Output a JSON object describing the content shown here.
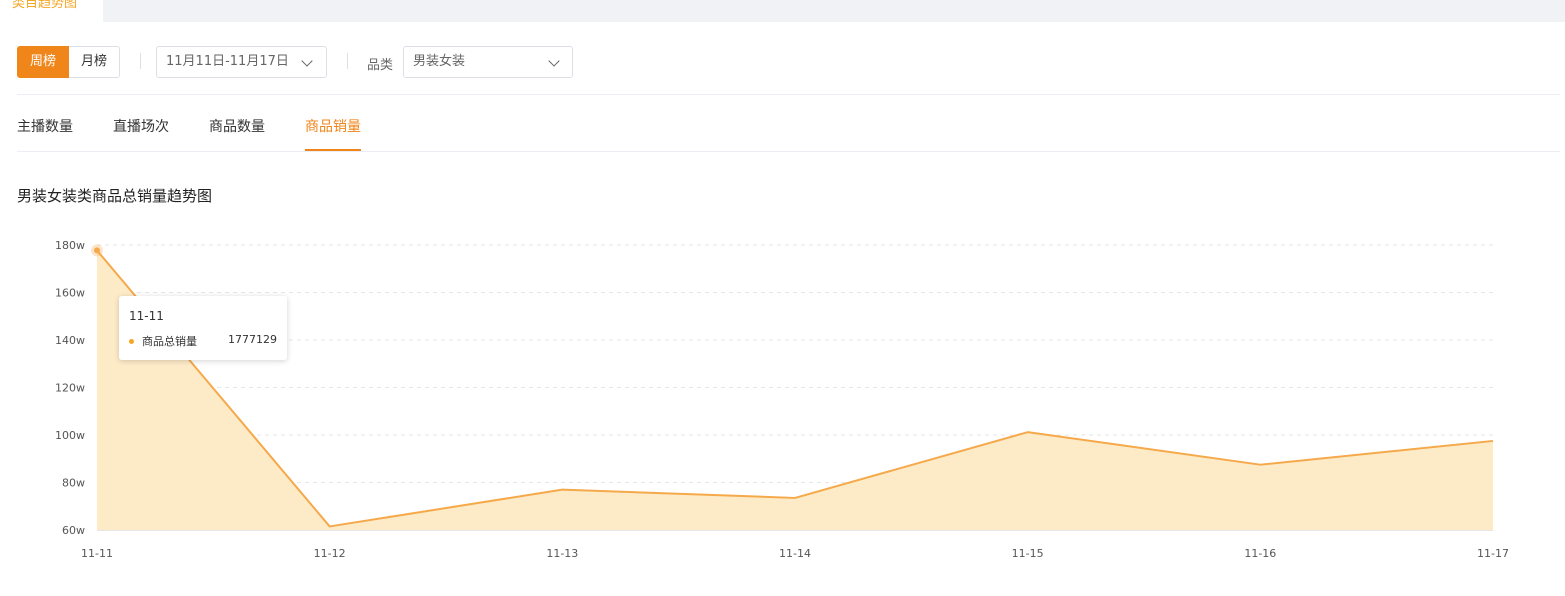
{
  "top_tab": {
    "label": "类目趋势图"
  },
  "period": {
    "week_label": "周榜",
    "month_label": "月榜"
  },
  "date_range": {
    "value": "11月11日-11月17日"
  },
  "category": {
    "label": "品类",
    "value": "男装女装"
  },
  "tabs": [
    {
      "label": "主播数量"
    },
    {
      "label": "直播场次"
    },
    {
      "label": "商品数量"
    },
    {
      "label": "商品销量"
    }
  ],
  "chart_title": "男装女装类商品总销量趋势图",
  "colors": {
    "accent": "#f08519",
    "line": "#f5a94a",
    "area": "#fdebc8"
  },
  "tooltip": {
    "date": "11-11",
    "series_name": "商品总销量",
    "value": "1777129"
  },
  "chart_data": {
    "type": "area",
    "title": "男装女装类商品总销量趋势图",
    "categories": [
      "11-11",
      "11-12",
      "11-13",
      "11-14",
      "11-15",
      "11-16",
      "11-17"
    ],
    "series": [
      {
        "name": "商品总销量",
        "values": [
          1777129,
          615000,
          770000,
          735000,
          1012000,
          875000,
          975000
        ]
      }
    ],
    "y_ticks": [
      "60w",
      "80w",
      "100w",
      "120w",
      "140w",
      "160w",
      "180w"
    ],
    "ylim": [
      600000,
      1800000
    ],
    "grid": true,
    "legend": "none"
  }
}
